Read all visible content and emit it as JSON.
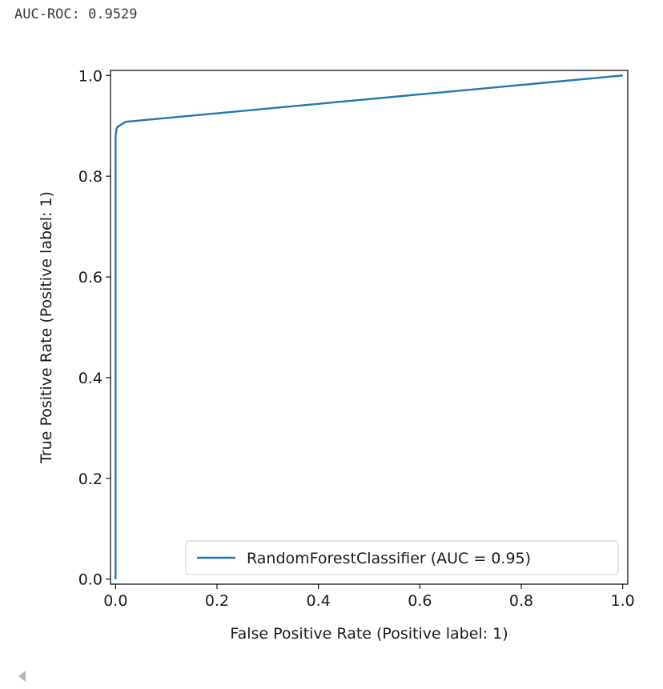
{
  "output": {
    "text": "AUC-ROC: 0.9529"
  },
  "chart_data": {
    "type": "line",
    "xlabel": "False Positive Rate (Positive label: 1)",
    "ylabel": "True Positive Rate (Positive label: 1)",
    "xlim": [
      -0.01,
      1.01
    ],
    "ylim": [
      -0.01,
      1.01
    ],
    "xticks": [
      "0.0",
      "0.2",
      "0.4",
      "0.6",
      "0.8",
      "1.0"
    ],
    "yticks": [
      "0.0",
      "0.2",
      "0.4",
      "0.6",
      "0.8",
      "1.0"
    ],
    "grid": false,
    "legend_position": "lower-right",
    "series": [
      {
        "name": "RandomForestClassifier (AUC = 0.95)",
        "color": "#1f77b4",
        "x": [
          0.0,
          0.0,
          0.002,
          0.004,
          0.02,
          1.0
        ],
        "y": [
          0.0,
          0.88,
          0.895,
          0.898,
          0.908,
          1.0
        ]
      }
    ]
  },
  "colors": {
    "axis": "#000000",
    "line": "#1f77b4",
    "legend_border": "#cccccc"
  },
  "icons": {
    "scroll": "scroll-left-arrow-icon"
  }
}
